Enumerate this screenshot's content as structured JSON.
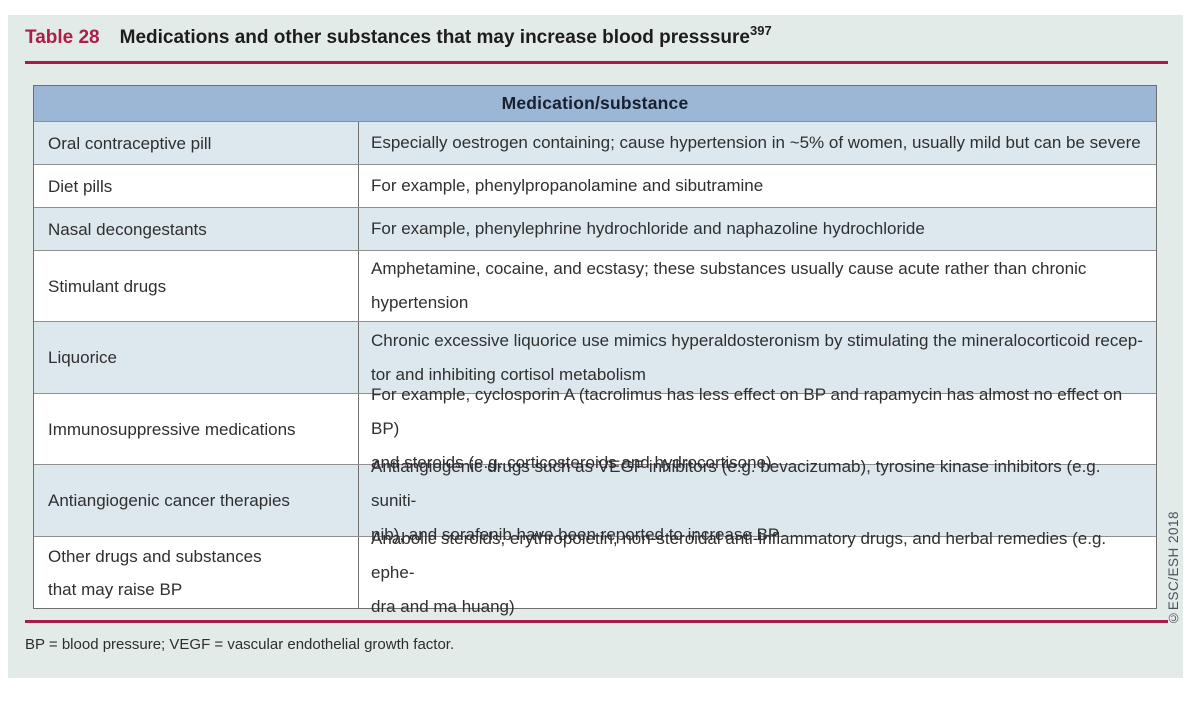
{
  "title": {
    "label": "Table 28",
    "text": "Medications and other substances that may increase blood presssure",
    "superscript": "397"
  },
  "table": {
    "header": "Medication/substance",
    "rows": [
      {
        "name": "Oral contraceptive pill",
        "description": "Especially oestrogen containing; cause hypertension in ~5% of women, usually mild but can be severe"
      },
      {
        "name": "Diet pills",
        "description": "For example, phenylpropanolamine and sibutramine"
      },
      {
        "name": "Nasal decongestants",
        "description": "For example, phenylephrine hydrochloride and naphazoline hydrochloride"
      },
      {
        "name": "Stimulant drugs",
        "description": "Amphetamine, cocaine, and ecstasy; these substances usually cause acute rather than chronic\nhypertension"
      },
      {
        "name": "Liquorice",
        "description": "Chronic excessive liquorice use mimics hyperaldosteronism by stimulating the mineralocorticoid recep-\ntor and inhibiting cortisol metabolism"
      },
      {
        "name": "Immunosuppressive medications",
        "description": "For example, cyclosporin A (tacrolimus has less effect on BP and rapamycin has almost no effect on BP)\nand steroids (e.g. corticosteroids and hydrocortisone)"
      },
      {
        "name": "Antiangiogenic cancer therapies",
        "description": "Antiangiogenic drugs such as VEGF inhibitors (e.g. bevacizumab), tyrosine kinase inhibitors (e.g. suniti-\nnib), and sorafenib have been reported to increase BP"
      },
      {
        "name": "Other drugs and substances\nthat may raise BP",
        "description": "Anabolic steroids, erythropoietin, non-steroidal anti-inflammatory drugs, and herbal remedies (e.g. ephe-\ndra and ma huang)"
      }
    ]
  },
  "footnote": "BP = blood pressure; VEGF = vascular endothelial growth factor.",
  "copyright": "©ESC/ESH 2018",
  "colors": {
    "accent_red": "#a81c4b",
    "header_blue": "#9cb7d5",
    "row_light_blue": "#dde8ee",
    "panel_background": "#e3ebe9"
  }
}
